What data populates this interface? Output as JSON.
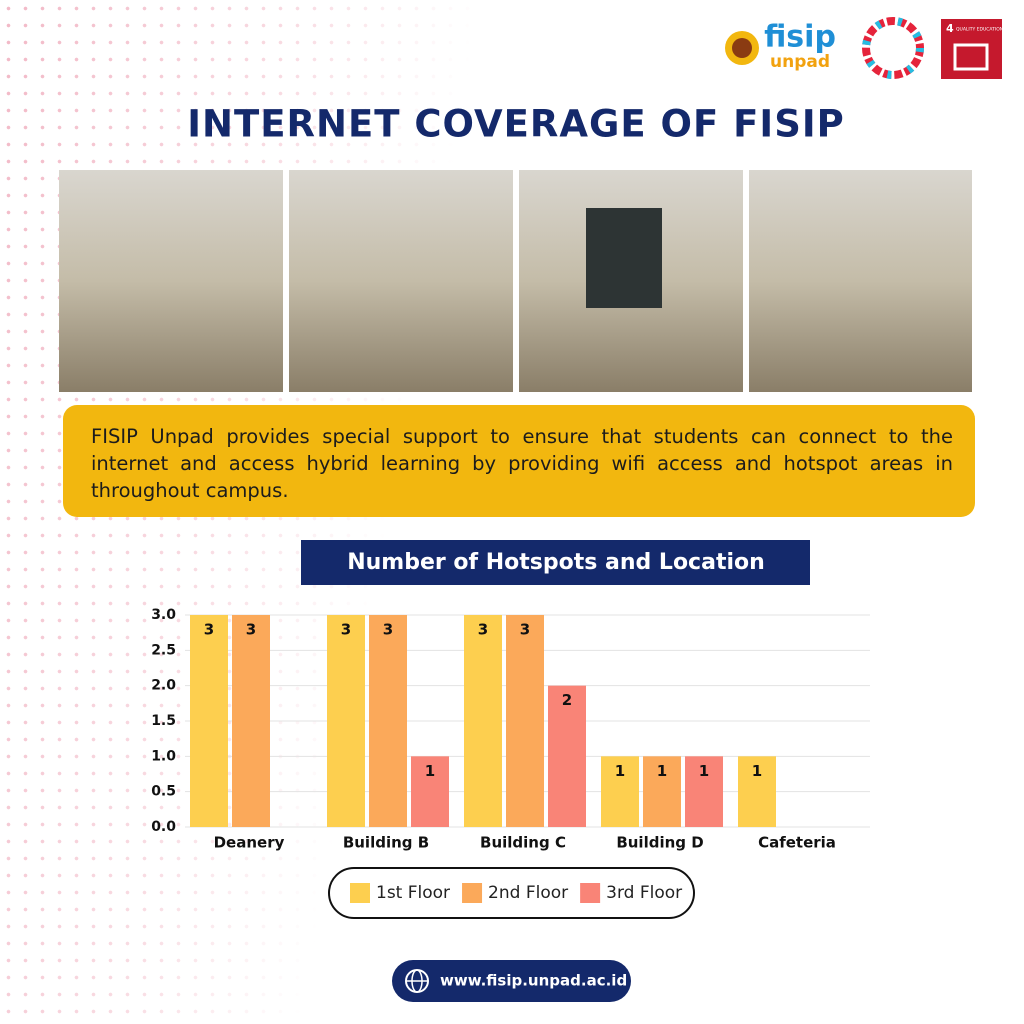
{
  "header": {
    "title": "INTERNET COVERAGE OF FISIP",
    "brand": {
      "fisip": "fisip",
      "unpad": "unpad"
    },
    "sdg": {
      "number": "4",
      "label": "QUALITY EDUCATION"
    }
  },
  "description": "FISIP Unpad provides special support to ensure that students can connect to the internet and access hybrid learning by providing wifi access and hotspot areas in throughout campus.",
  "chart_data": {
    "type": "bar",
    "title": "Number of Hotspots and Location",
    "categories": [
      "Deanery",
      "Building B",
      "Building C",
      "Building D",
      "Cafeteria"
    ],
    "series": [
      {
        "name": "1st Floor",
        "color": "#fdcf4f",
        "values": [
          3,
          3,
          3,
          1,
          1
        ]
      },
      {
        "name": "2nd Floor",
        "color": "#fba95a",
        "values": [
          3,
          3,
          3,
          1,
          null
        ]
      },
      {
        "name": "3rd Floor",
        "color": "#f98477",
        "values": [
          null,
          1,
          2,
          1,
          null
        ]
      }
    ],
    "ylim": [
      0,
      3
    ],
    "yticks": [
      {
        "value": 0,
        "label": "0.0"
      },
      {
        "value": 0.5,
        "label": "0.5"
      },
      {
        "value": 1,
        "label": "1.0"
      },
      {
        "value": 1.5,
        "label": "1.5"
      },
      {
        "value": 2,
        "label": "2.0"
      },
      {
        "value": 2.5,
        "label": "2.5"
      },
      {
        "value": 3,
        "label": "3.0"
      }
    ],
    "grid": true
  },
  "footer": {
    "url": "www.fisip.unpad.ac.id"
  }
}
